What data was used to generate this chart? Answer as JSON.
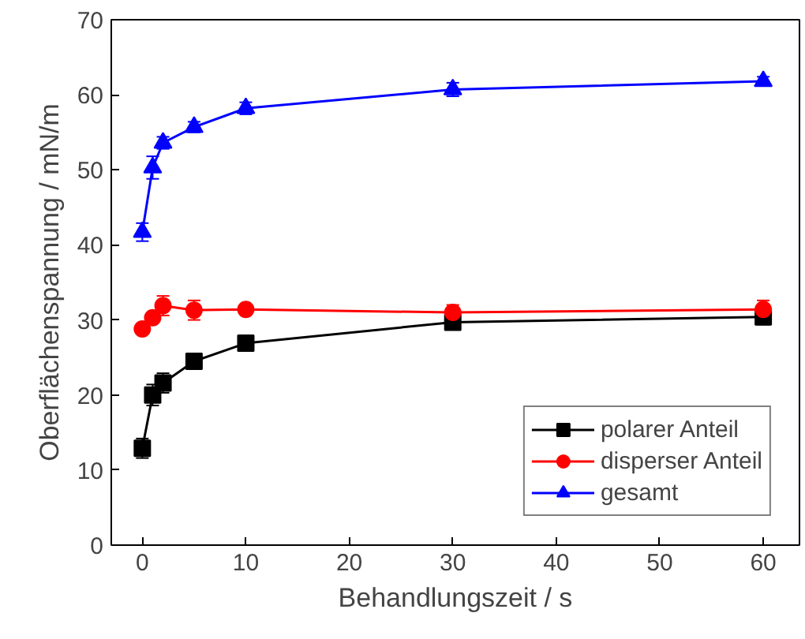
{
  "chart_data": {
    "type": "line",
    "xlabel": "Behandlungszeit / s",
    "ylabel": "Oberflächenspannung / mN/m",
    "x": [
      0,
      1,
      2,
      5,
      10,
      30,
      60
    ],
    "series": [
      {
        "name": "polarer Anteil",
        "color": "#000000",
        "marker": "square",
        "values": [
          12.9,
          20.0,
          21.6,
          24.5,
          26.9,
          29.7,
          30.4
        ],
        "errors": [
          1.3,
          1.4,
          1.3,
          1.0,
          0.6,
          0.6,
          1.0
        ]
      },
      {
        "name": "disperser Anteil",
        "color": "#ff0000",
        "marker": "circle",
        "values": [
          28.8,
          30.3,
          31.9,
          31.3,
          31.4,
          31.0,
          31.4
        ],
        "errors": [
          0.5,
          0.6,
          1.3,
          1.3,
          0.5,
          1.0,
          1.2
        ]
      },
      {
        "name": "gesamt",
        "color": "#0000ff",
        "marker": "triangle",
        "values": [
          41.7,
          50.3,
          53.6,
          55.7,
          58.2,
          60.7,
          61.8
        ],
        "errors": [
          1.2,
          1.5,
          0.8,
          0.7,
          0.8,
          0.9,
          0.6
        ]
      }
    ],
    "xlim": [
      -3,
      63.5
    ],
    "ylim": [
      0,
      70
    ],
    "xticks": [
      0,
      10,
      20,
      30,
      40,
      50,
      60
    ],
    "yticks": [
      0,
      10,
      20,
      30,
      40,
      50,
      60,
      70
    ],
    "grid": false,
    "legend": "bottom right",
    "line_style": "solid"
  }
}
